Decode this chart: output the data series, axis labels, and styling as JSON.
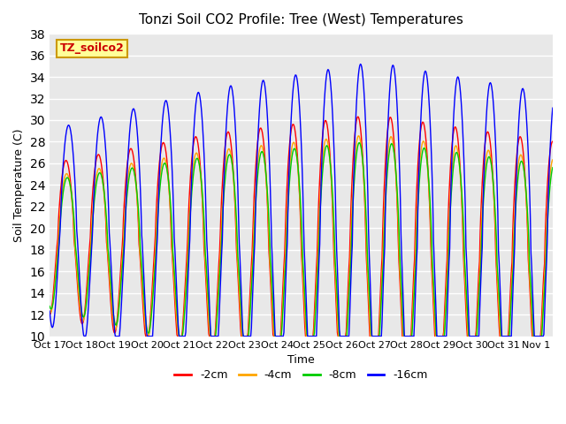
{
  "title": "Tonzi Soil CO2 Profile: Tree (West) Temperatures",
  "xlabel": "Time",
  "ylabel": "Soil Temperature (C)",
  "ylim": [
    10,
    38
  ],
  "xlim": [
    0,
    15.5
  ],
  "background_color": "#e8e8e8",
  "grid_color": "#ffffff",
  "legend_label": "TZ_soilco2",
  "legend_box_color": "#ffff99",
  "legend_box_edge": "#cc9900",
  "series_colors": [
    "#ff0000",
    "#ffa500",
    "#00cc00",
    "#0000ff"
  ],
  "series_labels": [
    "-2cm",
    "-4cm",
    "-8cm",
    "-16cm"
  ],
  "xtick_labels": [
    "Oct 17",
    "Oct 18",
    "Oct 19",
    "Oct 20",
    "Oct 21",
    "Oct 22",
    "Oct 23",
    "Oct 24",
    "Oct 25",
    "Oct 26",
    "Oct 27",
    "Oct 28",
    "Oct 29",
    "Oct 30",
    "Oct 31",
    "Nov 1"
  ],
  "xtick_positions": [
    0,
    1,
    2,
    3,
    4,
    5,
    6,
    7,
    8,
    9,
    10,
    11,
    12,
    13,
    14,
    15
  ],
  "n_days": 15.5,
  "samples_per_day": 48
}
